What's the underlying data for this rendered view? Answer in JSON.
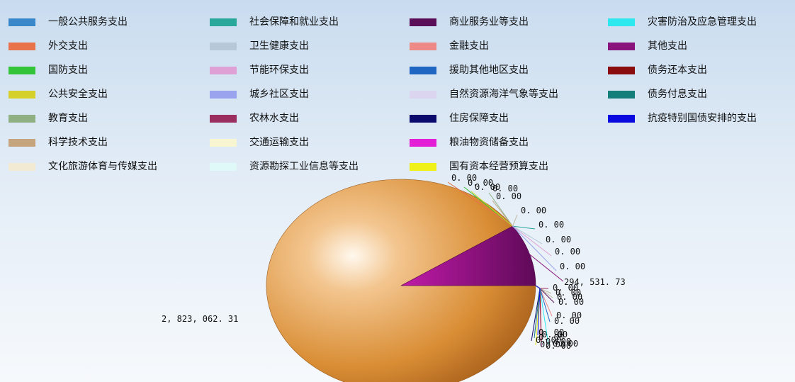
{
  "chart_data": {
    "type": "pie",
    "series": [
      {
        "name": "一般公共服务支出",
        "color": "#3a87c9",
        "value": 2823062.31,
        "label": "2, 823, 062. 31"
      },
      {
        "name": "外交支出",
        "color": "#e8734a",
        "value": 0,
        "label": "0. 00"
      },
      {
        "name": "国防支出",
        "color": "#33c439",
        "value": 0,
        "label": "0. 00"
      },
      {
        "name": "公共安全支出",
        "color": "#d6d12a",
        "value": 0,
        "label": "0. 00"
      },
      {
        "name": "教育支出",
        "color": "#8fb082",
        "value": 0,
        "label": "0. 00"
      },
      {
        "name": "科学技术支出",
        "color": "#c4a57d",
        "value": 0,
        "label": "0. 00"
      },
      {
        "name": "文化旅游体育与传媒支出",
        "color": "#f3ead3",
        "value": 0,
        "label": "0. 00"
      },
      {
        "name": "社会保障和就业支出",
        "color": "#2aa79b",
        "value": 0,
        "label": "0. 00"
      },
      {
        "name": "卫生健康支出",
        "color": "#b7c9d8",
        "value": 0,
        "label": "0. 00"
      },
      {
        "name": "节能环保支出",
        "color": "#dfa0d5",
        "value": 0,
        "label": "0. 00"
      },
      {
        "name": "城乡社区支出",
        "color": "#9aa4ee",
        "value": 0,
        "label": "0. 00"
      },
      {
        "name": "农林水支出",
        "color": "#9a2f5f",
        "value": 0,
        "label": "0. 00"
      },
      {
        "name": "交通运输支出",
        "color": "#f8f5d2",
        "value": 0,
        "label": "0. 00"
      },
      {
        "name": "资源勘探工业信息等支出",
        "color": "#dff8f8",
        "value": 0,
        "label": "0. 00"
      },
      {
        "name": "商业服务业等支出",
        "color": "#5a0e58",
        "value": 0,
        "label": "0. 00"
      },
      {
        "name": "金融支出",
        "color": "#ee8a86",
        "value": 0,
        "label": "0. 00"
      },
      {
        "name": "援助其他地区支出",
        "color": "#1e66c2",
        "value": 0,
        "label": "0. 00"
      },
      {
        "name": "自然资源海洋气象等支出",
        "color": "#dcd5f0",
        "value": 0,
        "label": "0. 00"
      },
      {
        "name": "住房保障支出",
        "color": "#0b0b6e",
        "value": 0,
        "label": "0. 00"
      },
      {
        "name": "粮油物资储备支出",
        "color": "#e21ed6",
        "value": 0,
        "label": "0. 00"
      },
      {
        "name": "国有资本经营预算支出",
        "color": "#f1f11a",
        "value": 0,
        "label": "0. 00"
      },
      {
        "name": "灾害防治及应急管理支出",
        "color": "#2ee8ef",
        "value": 0,
        "label": "0. 00"
      },
      {
        "name": "其他支出",
        "color": "#8a147e",
        "value": 294531.73,
        "label": "294, 531. 73"
      },
      {
        "name": "债务还本支出",
        "color": "#8a0c0c",
        "value": 0,
        "label": "0. 00"
      },
      {
        "name": "债务付息支出",
        "color": "#137e7a",
        "value": 0,
        "label": "0. 00"
      },
      {
        "name": "抗疫特别国债安排的支出",
        "color": "#0a0ae0",
        "value": 0,
        "label": "0. 00"
      }
    ],
    "legend": {
      "position": "top",
      "columns": 4,
      "rows_per_column": [
        7,
        7,
        7,
        5
      ]
    },
    "grid": false
  }
}
